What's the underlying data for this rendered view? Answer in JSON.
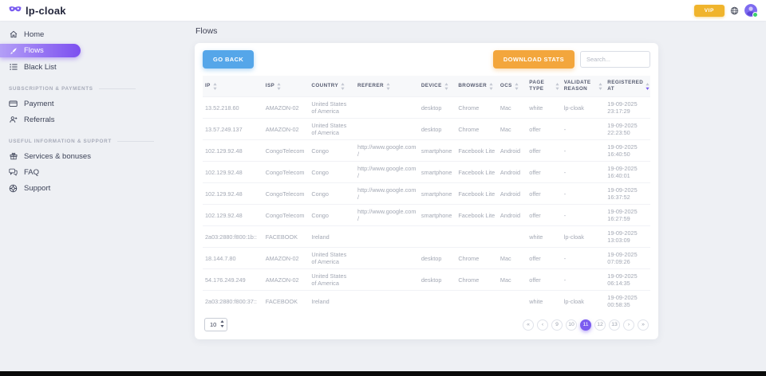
{
  "header": {
    "logo_text": "lp-cloak",
    "vip_label": "VIP"
  },
  "sidebar": {
    "sections": [
      {
        "label": "",
        "items": [
          {
            "label": "Home",
            "icon": "home-icon",
            "active": false
          },
          {
            "label": "Flows",
            "icon": "flows-icon",
            "active": true
          },
          {
            "label": "Black List",
            "icon": "black-list-icon",
            "active": false
          }
        ]
      },
      {
        "label": "SUBSCRIPTION & PAYMENTS",
        "items": [
          {
            "label": "Payment",
            "icon": "payment-icon",
            "active": false
          },
          {
            "label": "Referrals",
            "icon": "referrals-icon",
            "active": false
          }
        ]
      },
      {
        "label": "USEFUL INFORMATION & SUPPORT",
        "items": [
          {
            "label": "Services & bonuses",
            "icon": "services-icon",
            "active": false
          },
          {
            "label": "FAQ",
            "icon": "faq-icon",
            "active": false
          },
          {
            "label": "Support",
            "icon": "support-icon",
            "active": false
          }
        ]
      }
    ]
  },
  "main": {
    "page_title": "Flows",
    "toolbar": {
      "go_back_label": "GO BACK",
      "download_stats_label": "DOWNLOAD STATS",
      "search_placeholder": "Search..."
    },
    "table": {
      "columns": [
        {
          "label": "IP"
        },
        {
          "label": "ISP"
        },
        {
          "label": "COUNTRY"
        },
        {
          "label": "REFERER"
        },
        {
          "label": "DEVICE"
        },
        {
          "label": "BROWSER"
        },
        {
          "label": "OCS"
        },
        {
          "label": "PAGE TYPE"
        },
        {
          "label": "VALIDATE REASON"
        },
        {
          "label": "REGISTERED AT",
          "sorted": "desc"
        }
      ],
      "rows": [
        {
          "ip": "13.52.218.60",
          "isp": "AMAZON-02",
          "country": "United States of America",
          "referer": "",
          "device": "desktop",
          "browser": "Chrome",
          "ocs": "Mac",
          "page_type": "white",
          "validate_reason": "lp-cloak",
          "registered_at": "19-09-2025 23:17:29"
        },
        {
          "ip": "13.57.249.137",
          "isp": "AMAZON-02",
          "country": "United States of America",
          "referer": "",
          "device": "desktop",
          "browser": "Chrome",
          "ocs": "Mac",
          "page_type": "offer",
          "validate_reason": "-",
          "registered_at": "19-09-2025 22:23:50"
        },
        {
          "ip": "102.129.92.48",
          "isp": "CongoTelecom",
          "country": "Congo",
          "referer": "http://www.google.com/",
          "device": "smartphone",
          "browser": "Facebook Lite",
          "ocs": "Android",
          "page_type": "offer",
          "validate_reason": "-",
          "registered_at": "19-09-2025 16:40:50"
        },
        {
          "ip": "102.129.92.48",
          "isp": "CongoTelecom",
          "country": "Congo",
          "referer": "http://www.google.com/",
          "device": "smartphone",
          "browser": "Facebook Lite",
          "ocs": "Android",
          "page_type": "offer",
          "validate_reason": "-",
          "registered_at": "19-09-2025 16:40:01"
        },
        {
          "ip": "102.129.92.48",
          "isp": "CongoTelecom",
          "country": "Congo",
          "referer": "http://www.google.com/",
          "device": "smartphone",
          "browser": "Facebook Lite",
          "ocs": "Android",
          "page_type": "offer",
          "validate_reason": "-",
          "registered_at": "19-09-2025 16:37:52"
        },
        {
          "ip": "102.129.92.48",
          "isp": "CongoTelecom",
          "country": "Congo",
          "referer": "http://www.google.com/",
          "device": "smartphone",
          "browser": "Facebook Lite",
          "ocs": "Android",
          "page_type": "offer",
          "validate_reason": "-",
          "registered_at": "19-09-2025 16:27:59"
        },
        {
          "ip": "2a03:2880:f800:1b::",
          "isp": "FACEBOOK",
          "country": "Ireland",
          "referer": "",
          "device": "",
          "browser": "",
          "ocs": "",
          "page_type": "white",
          "validate_reason": "lp-cloak",
          "registered_at": "19-09-2025 13:03:09"
        },
        {
          "ip": "18.144.7.80",
          "isp": "AMAZON-02",
          "country": "United States of America",
          "referer": "",
          "device": "desktop",
          "browser": "Chrome",
          "ocs": "Mac",
          "page_type": "offer",
          "validate_reason": "-",
          "registered_at": "19-09-2025 07:09:26"
        },
        {
          "ip": "54.176.249.249",
          "isp": "AMAZON-02",
          "country": "United States of America",
          "referer": "",
          "device": "desktop",
          "browser": "Chrome",
          "ocs": "Mac",
          "page_type": "offer",
          "validate_reason": "-",
          "registered_at": "19-09-2025 06:14:35"
        },
        {
          "ip": "2a03:2880:f800:37::",
          "isp": "FACEBOOK",
          "country": "Ireland",
          "referer": "",
          "device": "",
          "browser": "",
          "ocs": "",
          "page_type": "white",
          "validate_reason": "lp-cloak",
          "registered_at": "19-09-2025 00:58:35"
        }
      ]
    },
    "footer": {
      "page_size": "10",
      "pagination": {
        "first_label": "«",
        "prev_label": "‹",
        "next_label": "›",
        "last_label": "»",
        "pages": [
          "9",
          "10",
          "11",
          "12",
          "13"
        ],
        "active_page": "11"
      }
    }
  },
  "colors": {
    "accent_purple": "#7b5cf0",
    "button_blue": "#55a6e9",
    "button_orange": "#f3a63c",
    "vip_yellow": "#f0b42c",
    "online_green": "#3ecf6e"
  }
}
